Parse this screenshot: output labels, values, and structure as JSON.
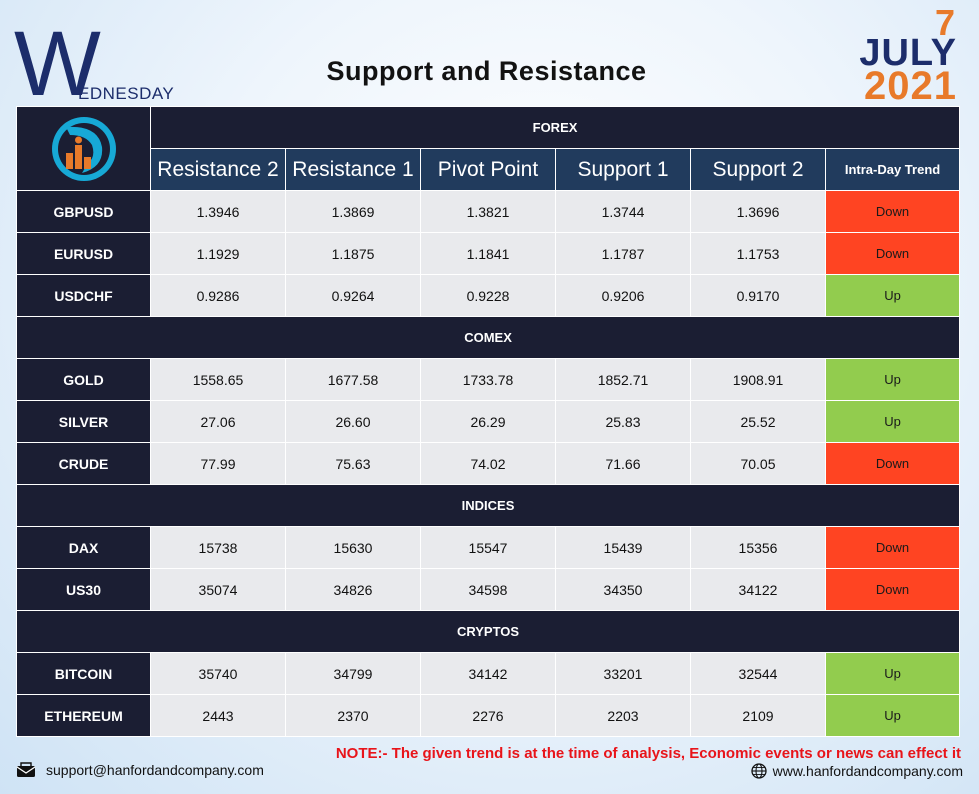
{
  "header": {
    "day_initial": "W",
    "day_rest": "EDNESDAY",
    "title": "Support and Resistance",
    "date_day": "7",
    "date_month": "JULY",
    "date_year": "2021"
  },
  "columns": [
    "Resistance 2",
    "Resistance 1",
    "Pivot Point",
    "Support 1",
    "Support 2",
    "Intra-Day Trend"
  ],
  "sections": [
    {
      "name": "FOREX",
      "rows": [
        {
          "symbol": "GBPUSD",
          "values": [
            "1.3946",
            "1.3869",
            "1.3821",
            "1.3744",
            "1.3696"
          ],
          "trend": "Down"
        },
        {
          "symbol": "EURUSD",
          "values": [
            "1.1929",
            "1.1875",
            "1.1841",
            "1.1787",
            "1.1753"
          ],
          "trend": "Down"
        },
        {
          "symbol": "USDCHF",
          "values": [
            "0.9286",
            "0.9264",
            "0.9228",
            "0.9206",
            "0.9170"
          ],
          "trend": "Up"
        }
      ]
    },
    {
      "name": "COMEX",
      "rows": [
        {
          "symbol": "GOLD",
          "values": [
            "1558.65",
            "1677.58",
            "1733.78",
            "1852.71",
            "1908.91"
          ],
          "trend": "Up"
        },
        {
          "symbol": "SILVER",
          "values": [
            "27.06",
            "26.60",
            "26.29",
            "25.83",
            "25.52"
          ],
          "trend": "Up"
        },
        {
          "symbol": "CRUDE",
          "values": [
            "77.99",
            "75.63",
            "74.02",
            "71.66",
            "70.05"
          ],
          "trend": "Down"
        }
      ]
    },
    {
      "name": "INDICES",
      "rows": [
        {
          "symbol": "DAX",
          "values": [
            "15738",
            "15630",
            "15547",
            "15439",
            "15356"
          ],
          "trend": "Down"
        },
        {
          "symbol": "US30",
          "values": [
            "35074",
            "34826",
            "34598",
            "34350",
            "34122"
          ],
          "trend": "Down"
        }
      ]
    },
    {
      "name": "CRYPTOS",
      "rows": [
        {
          "symbol": "BITCOIN",
          "values": [
            "35740",
            "34799",
            "34142",
            "33201",
            "32544"
          ],
          "trend": "Up"
        },
        {
          "symbol": "ETHEREUM",
          "values": [
            "2443",
            "2370",
            "2276",
            "2203",
            "2109"
          ],
          "trend": "Up"
        }
      ]
    }
  ],
  "colors": {
    "down": "#ff4422",
    "up": "#92cc4e",
    "navy": "#1b1e33",
    "header_blue": "#213b5d",
    "accent_orange": "#e87a2a"
  },
  "footer": {
    "note": "NOTE:- The given trend is at the time of analysis, Economic events or news can effect it",
    "email": "support@hanfordandcompany.com",
    "website": "www.hanfordandcompany.com",
    "email_icon": "envelope-icon",
    "website_icon": "globe-icon"
  }
}
